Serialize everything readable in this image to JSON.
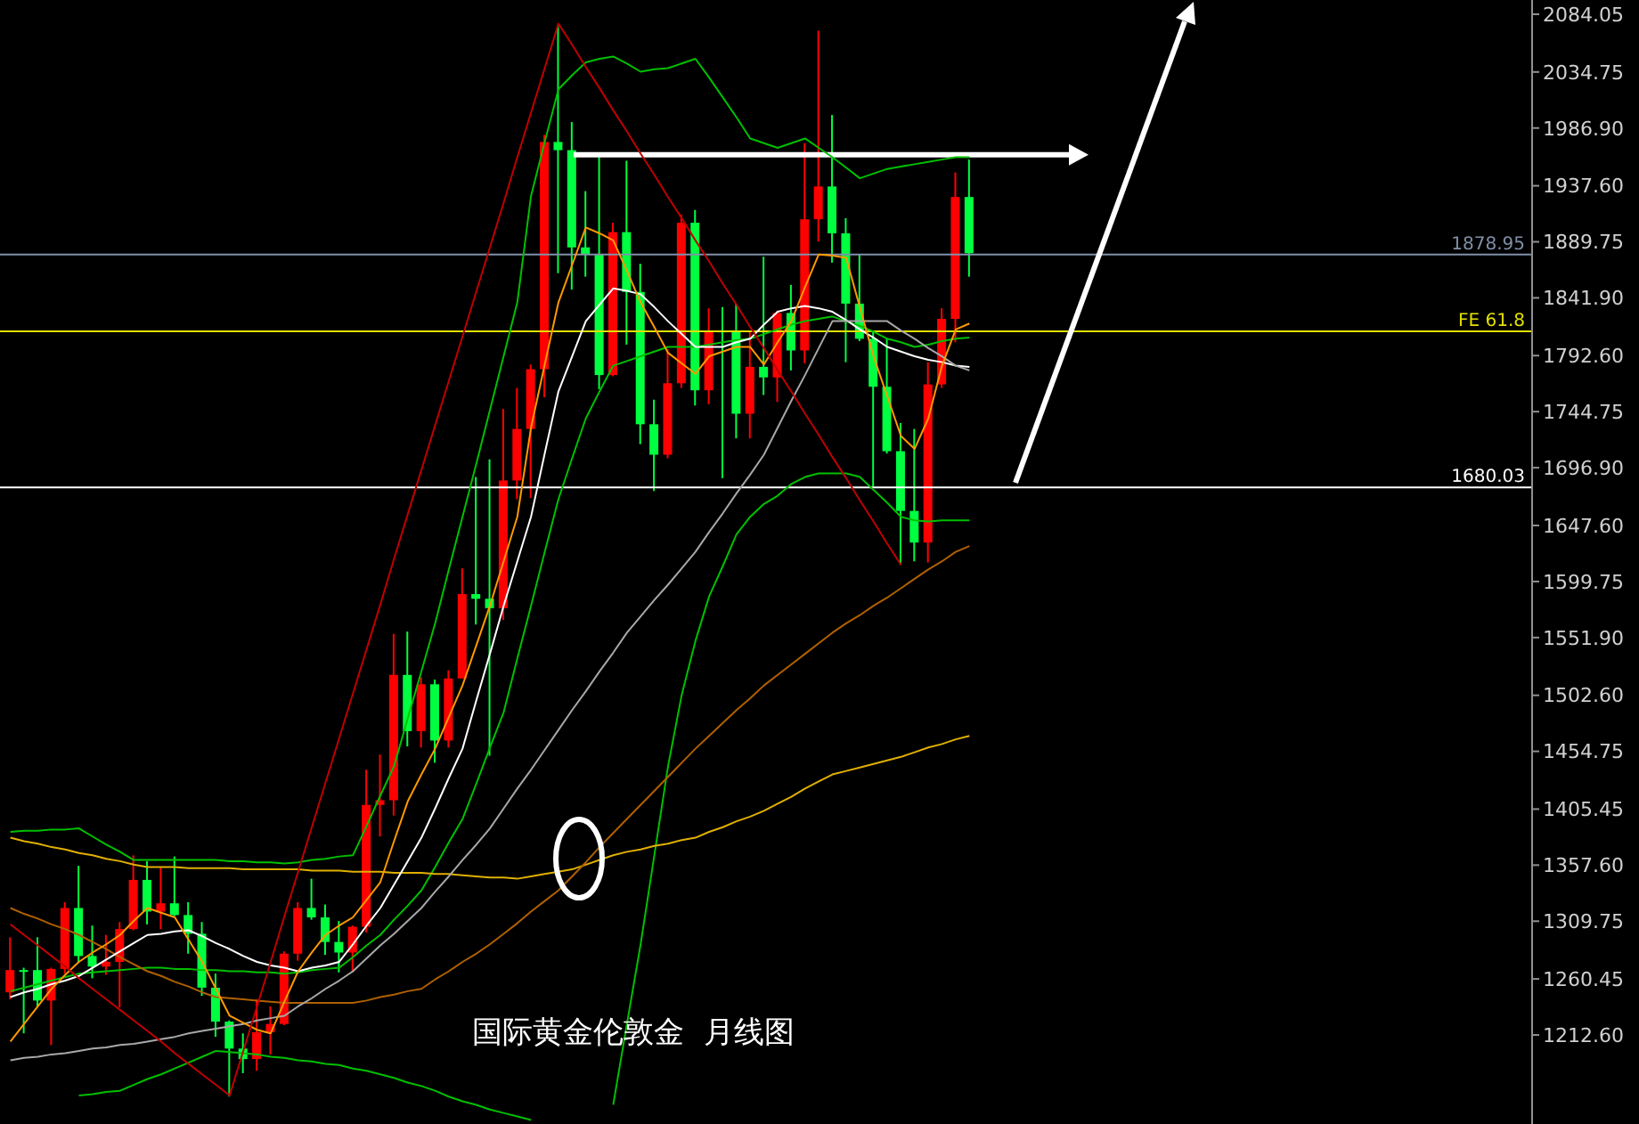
{
  "chart_data": {
    "type": "candlestick",
    "title": "国际黄金伦敦金  月线图",
    "categories": [
      null,
      null,
      null,
      null,
      null,
      null,
      null,
      null,
      null,
      null,
      null,
      null,
      null,
      null,
      null,
      null,
      null,
      null,
      null,
      null,
      null,
      null,
      null,
      null,
      null,
      null,
      null,
      null,
      null,
      null,
      null,
      null,
      null,
      null,
      null,
      null,
      null,
      null,
      null,
      null,
      null,
      null,
      null,
      null,
      null,
      null,
      null,
      null,
      null,
      null,
      null,
      null,
      null,
      null,
      null,
      null,
      null,
      null,
      null,
      null,
      null,
      null,
      null,
      null,
      null,
      null,
      null,
      null,
      null,
      null,
      null
    ],
    "ohlc": [
      [
        1249,
        1296,
        1243,
        1268
      ],
      [
        1268,
        1270,
        1214,
        1267
      ],
      [
        1268,
        1296,
        1236,
        1242
      ],
      [
        1242,
        1270,
        1204,
        1269
      ],
      [
        1269,
        1326,
        1265,
        1321
      ],
      [
        1321,
        1357,
        1275,
        1280
      ],
      [
        1280,
        1306,
        1261,
        1271
      ],
      [
        1271,
        1298,
        1264,
        1275
      ],
      [
        1275,
        1309,
        1236,
        1303
      ],
      [
        1303,
        1366,
        1302,
        1345
      ],
      [
        1345,
        1361,
        1307,
        1318
      ],
      [
        1318,
        1356,
        1303,
        1325
      ],
      [
        1325,
        1365,
        1314,
        1315
      ],
      [
        1315,
        1326,
        1282,
        1299
      ],
      [
        1299,
        1309,
        1246,
        1253
      ],
      [
        1253,
        1265,
        1211,
        1224
      ],
      [
        1224,
        1225,
        1160,
        1201
      ],
      [
        1201,
        1214,
        1180,
        1192
      ],
      [
        1192,
        1243,
        1182,
        1215
      ],
      [
        1215,
        1237,
        1196,
        1222
      ],
      [
        1222,
        1284,
        1221,
        1282
      ],
      [
        1282,
        1326,
        1276,
        1321
      ],
      [
        1321,
        1346,
        1311,
        1313
      ],
      [
        1313,
        1324,
        1281,
        1292
      ],
      [
        1292,
        1310,
        1266,
        1283
      ],
      [
        1283,
        1306,
        1266,
        1305
      ],
      [
        1305,
        1439,
        1300,
        1409
      ],
      [
        1409,
        1452,
        1382,
        1413
      ],
      [
        1413,
        1555,
        1400,
        1520
      ],
      [
        1520,
        1557,
        1459,
        1472
      ],
      [
        1472,
        1518,
        1458,
        1512
      ],
      [
        1512,
        1516,
        1445,
        1464
      ],
      [
        1464,
        1524,
        1458,
        1517
      ],
      [
        1517,
        1611,
        1517,
        1589
      ],
      [
        1589,
        1689,
        1563,
        1585
      ],
      [
        1585,
        1704,
        1451,
        1577
      ],
      [
        1577,
        1747,
        1567,
        1686
      ],
      [
        1686,
        1765,
        1670,
        1730
      ],
      [
        1730,
        1785,
        1671,
        1781
      ],
      [
        1781,
        1981,
        1757,
        1975
      ],
      [
        1975,
        2075,
        1863,
        1968
      ],
      [
        1968,
        1992,
        1849,
        1885
      ],
      [
        1885,
        1933,
        1860,
        1879
      ],
      [
        1879,
        1965,
        1764,
        1776
      ],
      [
        1776,
        1906,
        1775,
        1898
      ],
      [
        1898,
        1959,
        1802,
        1847
      ],
      [
        1847,
        1871,
        1717,
        1734
      ],
      [
        1734,
        1755,
        1677,
        1708
      ],
      [
        1708,
        1798,
        1705,
        1769
      ],
      [
        1769,
        1913,
        1765,
        1906
      ],
      [
        1906,
        1917,
        1750,
        1763
      ],
      [
        1763,
        1833,
        1751,
        1814
      ],
      [
        1814,
        1834,
        1688,
        1813
      ],
      [
        1814,
        1837,
        1722,
        1743
      ],
      [
        1743,
        1814,
        1722,
        1783
      ],
      [
        1783,
        1877,
        1759,
        1774
      ],
      [
        1774,
        1831,
        1753,
        1829
      ],
      [
        1829,
        1853,
        1780,
        1797
      ],
      [
        1797,
        1974,
        1786,
        1909
      ],
      [
        1909,
        2070,
        1890,
        1937
      ],
      [
        1937,
        1998,
        1872,
        1897
      ],
      [
        1897,
        1910,
        1787,
        1837
      ],
      [
        1837,
        1879,
        1805,
        1807
      ],
      [
        1807,
        1814,
        1681,
        1766
      ],
      [
        1766,
        1807,
        1709,
        1711
      ],
      [
        1711,
        1735,
        1614,
        1660
      ],
      [
        1660,
        1730,
        1617,
        1633
      ],
      [
        1633,
        1787,
        1616,
        1768
      ],
      [
        1768,
        1833,
        1765,
        1824
      ],
      [
        1824,
        1949,
        1804,
        1928
      ],
      [
        1928,
        1960,
        1860,
        1880
      ]
    ],
    "colors": [
      "#ff0000",
      "#00ff40",
      "#00ff40",
      "#ff0000",
      "#ff0000",
      "#00ff40",
      "#00ff40",
      "#ff0000",
      "#ff0000",
      "#ff0000",
      "#00ff40",
      "#ff0000",
      "#00ff40",
      "#00ff40",
      "#00ff40",
      "#00ff40",
      "#00ff40",
      "#00ff40",
      "#ff0000",
      "#ff0000",
      "#ff0000",
      "#ff0000",
      "#00ff40",
      "#00ff40",
      "#00ff40",
      "#ff0000",
      "#ff0000",
      "#ff0000",
      "#ff0000",
      "#00ff40",
      "#ff0000",
      "#00ff40",
      "#ff0000",
      "#ff0000",
      "#00ff40",
      "#00ff40",
      "#ff0000",
      "#ff0000",
      "#ff0000",
      "#ff0000",
      "#00ff40",
      "#00ff40",
      "#00ff40",
      "#00ff40",
      "#ff0000",
      "#00ff40",
      "#00ff40",
      "#00ff40",
      "#ff0000",
      "#ff0000",
      "#00ff40",
      "#ff0000",
      "#00ff40",
      "#00ff40",
      "#ff0000",
      "#00ff40",
      "#ff0000",
      "#00ff40",
      "#ff0000",
      "#ff0000",
      "#00ff40",
      "#00ff40",
      "#00ff40",
      "#00ff40",
      "#00ff40",
      "#00ff40",
      "#00ff40",
      "#ff0000",
      "#ff0000",
      "#ff0000",
      "#00ff40"
    ],
    "series": [
      {
        "type": "line",
        "color": "#00c000",
        "values": [
          1386,
          1387,
          1387,
          1388,
          1388,
          1389,
          1382,
          1375,
          1369,
          1362,
          1362,
          1362,
          1362,
          1362,
          1362,
          1362,
          1361,
          1361,
          1360,
          1360,
          1359,
          1360,
          1362,
          1363,
          1365,
          1366,
          1391,
          1417,
          1442,
          1483,
          1523,
          1564,
          1610,
          1655,
          1700,
          1746,
          1792,
          1838,
          1929,
          1975,
          2020,
          2032,
          2043,
          2046,
          2048,
          2042,
          2035,
          2037,
          2038,
          2042,
          2046,
          2030,
          2013,
          1996,
          1978,
          1974,
          1970,
          1974,
          1978,
          1970,
          1962,
          1953,
          1944,
          1948,
          1952,
          1954,
          1956,
          1958,
          1960,
          1962,
          1962
        ]
      },
      {
        "type": "line",
        "color": "#00c000",
        "values": [
          1250,
          1253,
          1256,
          1259,
          1262,
          1265,
          1266,
          1267,
          1268,
          1269,
          1270,
          1270,
          1269,
          1269,
          1268,
          1268,
          1267,
          1267,
          1266,
          1266,
          1265,
          1266,
          1268,
          1269,
          1270,
          1279,
          1289,
          1298,
          1311,
          1323,
          1336,
          1356,
          1377,
          1397,
          1427,
          1458,
          1488,
          1534,
          1579,
          1625,
          1670,
          1705,
          1739,
          1762,
          1784,
          1788,
          1792,
          1796,
          1800,
          1800,
          1800,
          1802,
          1804,
          1806,
          1807,
          1811,
          1815,
          1819,
          1822,
          1824,
          1826,
          1822,
          1818,
          1813,
          1807,
          1804,
          1800,
          1802,
          1805,
          1807,
          1808
        ]
      },
      {
        "type": "line",
        "color": "#00c000",
        "values": [
          null,
          null,
          null,
          null,
          null,
          1161,
          1162,
          1164,
          1165,
          1170,
          1175,
          1179,
          1184,
          1189,
          1194,
          1199,
          1198,
          1197,
          1196,
          1194,
          1193,
          1191,
          1190,
          1188,
          1187,
          1184,
          1182,
          1179,
          1176,
          1172,
          1169,
          1165,
          1160,
          1156,
          1153,
          1149,
          1146,
          1143,
          1140,
          null,
          null,
          null,
          null,
          null,
          1153,
          1222,
          1290,
          1366,
          1442,
          1503,
          1549,
          1587,
          1613,
          1640,
          1655,
          1666,
          1673,
          1683,
          1689,
          1692,
          1692,
          1692,
          1689,
          1678,
          1667,
          1655,
          1652,
          1651,
          1652,
          1652,
          1652
        ]
      },
      {
        "type": "line",
        "color": "#e0b000",
        "values": [
          1381,
          1378,
          1376,
          1373,
          1371,
          1368,
          1366,
          1363,
          1361,
          1358,
          1356,
          1356,
          1356,
          1355,
          1355,
          1355,
          1355,
          1354,
          1354,
          1354,
          1354,
          1354,
          1353,
          1353,
          1353,
          1352,
          1352,
          1352,
          1351,
          1351,
          1351,
          1350,
          1350,
          1349,
          1348,
          1347,
          1347,
          1346,
          1348,
          1350,
          1352,
          1354,
          1358,
          1362,
          1366,
          1369,
          1371,
          1374,
          1376,
          1379,
          1381,
          1386,
          1390,
          1395,
          1399,
          1404,
          1410,
          1416,
          1423,
          1429,
          1435,
          1438,
          1441,
          1444,
          1447,
          1450,
          1454,
          1458,
          1461,
          1465,
          1468
        ]
      },
      {
        "type": "line",
        "color": "#b06000",
        "values": [
          1321,
          1316,
          1312,
          1307,
          1303,
          1298,
          1292,
          1286,
          1279,
          1273,
          1267,
          1263,
          1258,
          1254,
          1249,
          1245,
          1244,
          1243,
          1242,
          1241,
          1240,
          1240,
          1240,
          1240,
          1240,
          1240,
          1242,
          1245,
          1247,
          1250,
          1252,
          1260,
          1267,
          1275,
          1282,
          1290,
          1299,
          1308,
          1318,
          1327,
          1336,
          1348,
          1360,
          1373,
          1385,
          1397,
          1409,
          1421,
          1433,
          1445,
          1457,
          1468,
          1479,
          1490,
          1500,
          1511,
          1520,
          1529,
          1538,
          1547,
          1556,
          1564,
          1571,
          1579,
          1586,
          1594,
          1602,
          1610,
          1617,
          1625,
          1630
        ]
      },
      {
        "type": "line",
        "color": "#ffffff",
        "values": [
          1245,
          1249,
          1252,
          1256,
          1259,
          1263,
          1270,
          1277,
          1284,
          1291,
          1298,
          1299,
          1301,
          1302,
          1297,
          1291,
          1286,
          1280,
          1275,
          1272,
          1270,
          1267,
          1270,
          1272,
          1275,
          1290,
          1306,
          1321,
          1341,
          1361,
          1381,
          1406,
          1432,
          1457,
          1498,
          1538,
          1579,
          1617,
          1655,
          1709,
          1762,
          1792,
          1822,
          1836,
          1850,
          1848,
          1845,
          1834,
          1822,
          1811,
          1800,
          1800,
          1800,
          1804,
          1807,
          1819,
          1830,
          1833,
          1835,
          1833,
          1830,
          1823,
          1815,
          1808,
          1800,
          1796,
          1792,
          1789,
          1787,
          1784,
          1783
        ]
      },
      {
        "type": "line",
        "color": "#a8a8a8",
        "values": [
          1191,
          1193,
          1194,
          1196,
          1197,
          1199,
          1201,
          1202,
          1204,
          1205,
          1207,
          1209,
          1211,
          1214,
          1216,
          1218,
          1220,
          1222,
          1225,
          1227,
          1229,
          1237,
          1244,
          1252,
          1259,
          1267,
          1278,
          1289,
          1299,
          1310,
          1321,
          1335,
          1348,
          1362,
          1375,
          1389,
          1406,
          1423,
          1439,
          1456,
          1473,
          1490,
          1506,
          1523,
          1539,
          1556,
          1570,
          1584,
          1597,
          1611,
          1625,
          1642,
          1658,
          1675,
          1691,
          1708,
          1731,
          1754,
          1776,
          1799,
          1822,
          1822,
          1822,
          1822,
          1822,
          1814,
          1807,
          1799,
          1792,
          1784,
          1780
        ]
      },
      {
        "type": "line",
        "color": "#ff9900",
        "values": [
          1207,
          1222,
          1237,
          1252,
          1264,
          1275,
          1283,
          1290,
          1298,
          1310,
          1321,
          1317,
          1313,
          1294,
          1275,
          1252,
          1229,
          1223,
          1217,
          1214,
          1241,
          1267,
          1283,
          1298,
          1306,
          1313,
          1328,
          1343,
          1378,
          1412,
          1435,
          1457,
          1484,
          1511,
          1545,
          1579,
          1617,
          1655,
          1731,
          1785,
          1838,
          1870,
          1902,
          1897,
          1891,
          1865,
          1838,
          1817,
          1795,
          1786,
          1777,
          1792,
          1796,
          1800,
          1800,
          1785,
          1804,
          1822,
          1851,
          1879,
          1878,
          1876,
          1834,
          1792,
          1758,
          1724,
          1713,
          1739,
          1784,
          1815,
          1820
        ]
      },
      {
        "type": "line",
        "color": "#c00000",
        "values": [
          1307,
          1298,
          1289,
          1280,
          1271,
          1261,
          1252,
          1243,
          1234,
          1225,
          1216,
          1207,
          1197,
          1188,
          1179,
          1170,
          1161,
          1199,
          1237,
          1275,
          1314,
          1352,
          1390,
          1428,
          1466,
          1504,
          1542,
          1580,
          1619,
          1657,
          1695,
          1733,
          1771,
          1809,
          1847,
          1885,
          1923,
          1962,
          2000,
          2038,
          2076,
          2058,
          2039,
          2021,
          2002,
          1984,
          1965,
          1947,
          1928,
          1910,
          1891,
          1873,
          1854,
          1836,
          1817,
          1799,
          1780,
          1762,
          1743,
          1725,
          1706,
          1688,
          1669,
          1651,
          1632,
          1614,
          null,
          null,
          null,
          null,
          null
        ]
      }
    ],
    "ref_lines": [
      {
        "axis": "y",
        "value": 1878.95,
        "label": "1878.95",
        "color": "#8090a8"
      },
      {
        "axis": "y",
        "value": 1813.3,
        "label": "FE 61.8",
        "color": "#e0e000"
      },
      {
        "axis": "y",
        "value": 1680.03,
        "label": "1680.03",
        "color": "#ffffff"
      },
      {
        "axis": "y",
        "value": 1964,
        "color": "#ffffff",
        "line_style": "solid"
      }
    ],
    "ylim": [
      1136.6,
      2096.2
    ],
    "yticks": [
      {
        "value": 2084.05,
        "label": "2084.05"
      },
      {
        "value": 2034.75,
        "label": "2034.75"
      },
      {
        "value": 1986.9,
        "label": "1986.90"
      },
      {
        "value": 1937.6,
        "label": "1937.60"
      },
      {
        "value": 1889.75,
        "label": "1889.75"
      },
      {
        "value": 1841.9,
        "label": "1841.90"
      },
      {
        "value": 1792.6,
        "label": "1792.60"
      },
      {
        "value": 1744.75,
        "label": "1744.75"
      },
      {
        "value": 1696.9,
        "label": "1696.90"
      },
      {
        "value": 1647.6,
        "label": "1647.60"
      },
      {
        "value": 1599.75,
        "label": "1599.75"
      },
      {
        "value": 1551.9,
        "label": "1551.90"
      },
      {
        "value": 1502.6,
        "label": "1502.60"
      },
      {
        "value": 1454.75,
        "label": "1454.75"
      },
      {
        "value": 1405.45,
        "label": "1405.45"
      },
      {
        "value": 1357.6,
        "label": "1357.60"
      },
      {
        "value": 1309.75,
        "label": "1309.75"
      },
      {
        "value": 1260.45,
        "label": "1260.45"
      },
      {
        "value": 1212.6,
        "label": "1212.60"
      }
    ],
    "tick_labels": "y"
  }
}
